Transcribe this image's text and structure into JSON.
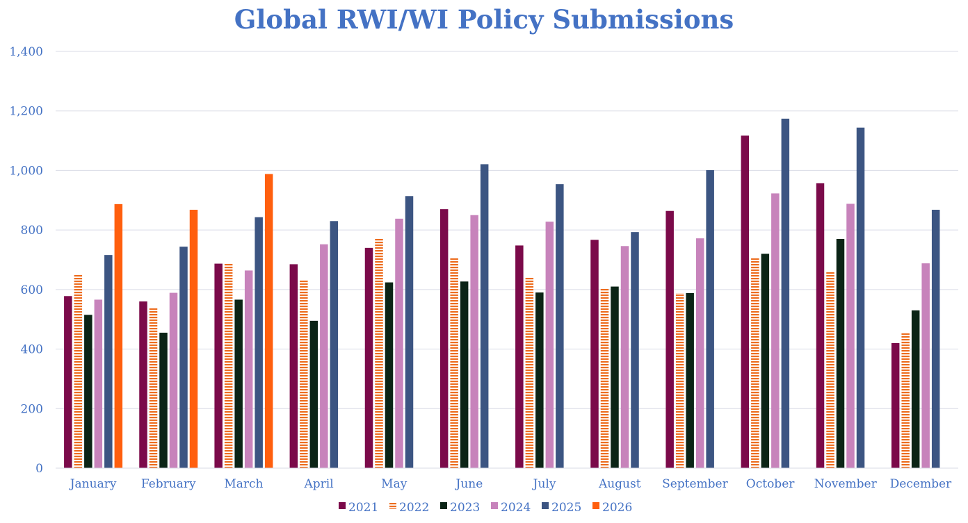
{
  "chart_data": {
    "type": "bar",
    "title": "Global RWI/WI Policy Submissions",
    "xlabel": "",
    "ylabel": "",
    "ylim": [
      0,
      1400
    ],
    "yticks": [
      0,
      200,
      400,
      600,
      800,
      1000,
      1200,
      1400
    ],
    "ytick_labels": [
      "0",
      "200",
      "400",
      "600",
      "800",
      "1,000",
      "1,200",
      "1,400"
    ],
    "grid": true,
    "legend_position": "bottom",
    "categories": [
      "January",
      "February",
      "March",
      "April",
      "May",
      "June",
      "July",
      "August",
      "September",
      "October",
      "November",
      "December"
    ],
    "series": [
      {
        "name": "2021",
        "color": "#7b0a4a",
        "pattern": "solid",
        "values": [
          578,
          560,
          687,
          685,
          740,
          870,
          748,
          767,
          864,
          1117,
          957,
          420
        ]
      },
      {
        "name": "2022",
        "color": "#ed6d1f",
        "pattern": "horizontal-stripes",
        "values": [
          652,
          540,
          686,
          630,
          770,
          706,
          642,
          604,
          588,
          708,
          658,
          455
        ]
      },
      {
        "name": "2023",
        "color": "#0b2416",
        "pattern": "solid",
        "values": [
          515,
          455,
          566,
          495,
          624,
          627,
          590,
          610,
          588,
          720,
          770,
          530
        ]
      },
      {
        "name": "2024",
        "color": "#c783bb",
        "pattern": "solid",
        "values": [
          566,
          589,
          664,
          752,
          838,
          850,
          828,
          746,
          772,
          923,
          888,
          688
        ]
      },
      {
        "name": "2025",
        "color": "#3c5582",
        "pattern": "solid",
        "values": [
          716,
          744,
          843,
          830,
          914,
          1021,
          954,
          793,
          1001,
          1174,
          1144,
          868
        ]
      },
      {
        "name": "2026",
        "color": "#ff5f0e",
        "pattern": "solid",
        "values": [
          887,
          868,
          988,
          null,
          null,
          null,
          null,
          null,
          null,
          null,
          null,
          null
        ]
      }
    ]
  }
}
